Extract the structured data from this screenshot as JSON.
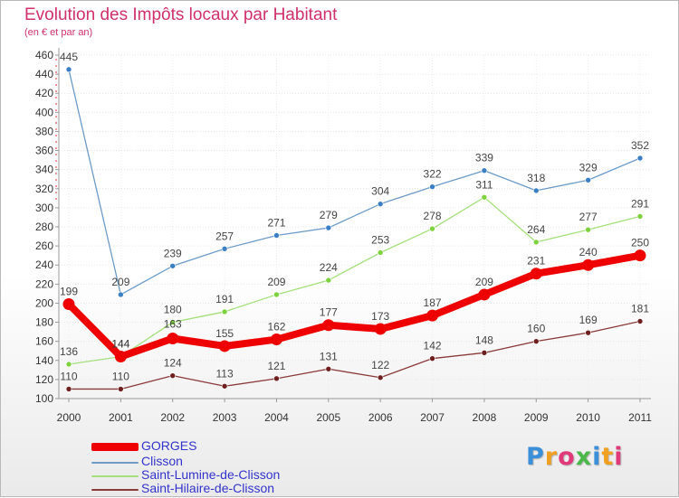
{
  "chart_data": {
    "type": "line",
    "title": "Evolution des Impôts locaux par Habitant",
    "subtitle": "(en € et par an)",
    "xlabel": "",
    "ylabel": "",
    "categories": [
      "2000",
      "2001",
      "2002",
      "2003",
      "2004",
      "2005",
      "2006",
      "2007",
      "2008",
      "2009",
      "2010",
      "2011"
    ],
    "ylim": [
      100,
      460
    ],
    "yticks": [
      100,
      120,
      140,
      160,
      180,
      200,
      220,
      240,
      260,
      280,
      300,
      320,
      340,
      360,
      380,
      400,
      420,
      440,
      460
    ],
    "series": [
      {
        "name": "Clisson",
        "color": "#6c9bc9",
        "marker": "#3a7ec6",
        "values": [
          445,
          209,
          239,
          257,
          271,
          279,
          304,
          322,
          339,
          318,
          329,
          352
        ]
      },
      {
        "name": "Saint-Lumine-de-Clisson",
        "color": "#a5e07c",
        "marker": "#7ed13f",
        "values": [
          136,
          144,
          180,
          191,
          209,
          224,
          253,
          278,
          311,
          264,
          277,
          291
        ]
      },
      {
        "name": "Saint-Hilaire-de-Clisson",
        "color": "#8b3a3a",
        "marker": "#6e1f1f",
        "values": [
          110,
          110,
          124,
          113,
          121,
          131,
          122,
          142,
          148,
          160,
          169,
          181
        ]
      },
      {
        "name": "GORGES",
        "color": "#ee0000",
        "marker": "#ee0000",
        "values": [
          199,
          144,
          163,
          155,
          162,
          177,
          173,
          187,
          209,
          231,
          240,
          250
        ]
      }
    ],
    "legend_order": [
      "GORGES",
      "Clisson",
      "Saint-Lumine-de-Clisson",
      "Saint-Hilaire-de-Clisson"
    ],
    "legend_position": "bottom-left"
  },
  "branding": {
    "logo_letters": [
      "P",
      "r",
      "o",
      "x",
      "i",
      "t",
      "i"
    ],
    "logo_colors": [
      "#3a8fd8",
      "#f0a020",
      "#e03a7a",
      "#4bb84b",
      "#3a8fd8",
      "#f0a020",
      "#e03a7a"
    ]
  }
}
